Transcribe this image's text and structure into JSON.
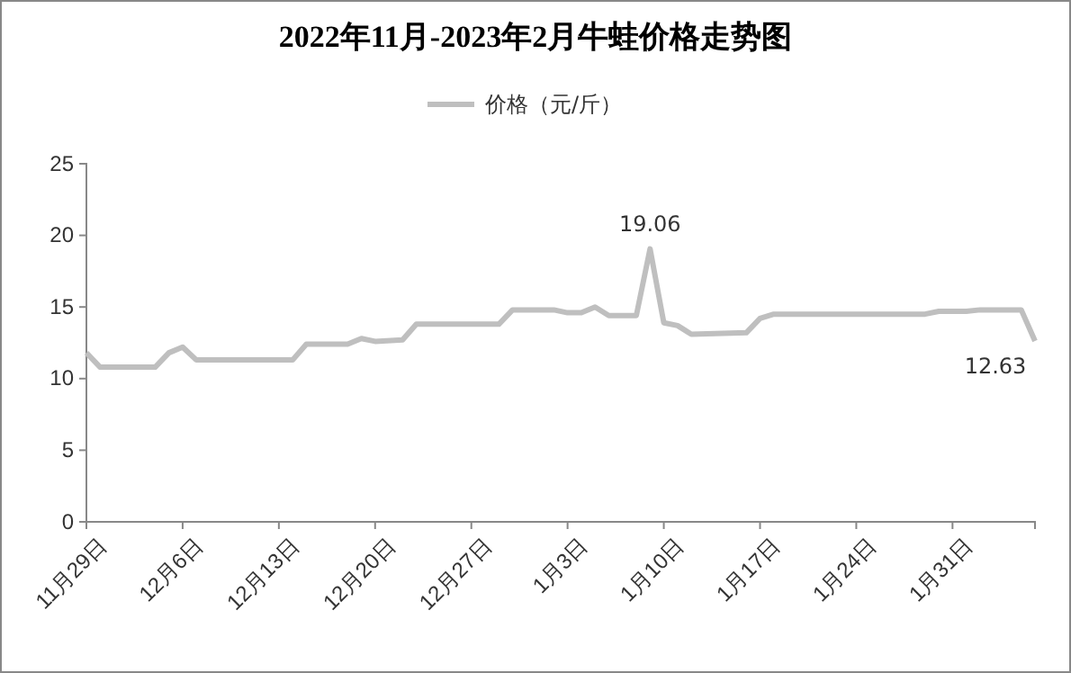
{
  "chart_data": {
    "type": "line",
    "title": "2022年11月-2023年2月牛蛙价格走势图",
    "x": [
      "2022-11-29",
      "2022-11-30",
      "2022-12-04",
      "2022-12-05",
      "2022-12-06",
      "2022-12-07",
      "2022-12-14",
      "2022-12-15",
      "2022-12-18",
      "2022-12-19",
      "2022-12-20",
      "2022-12-22",
      "2022-12-23",
      "2022-12-29",
      "2022-12-30",
      "2023-01-02",
      "2023-01-03",
      "2023-01-04",
      "2023-01-05",
      "2023-01-06",
      "2023-01-08",
      "2023-01-09",
      "2023-01-10",
      "2023-01-11",
      "2023-01-12",
      "2023-01-16",
      "2023-01-17",
      "2023-01-18",
      "2023-01-29",
      "2023-01-30",
      "2023-02-01",
      "2023-02-02",
      "2023-02-05",
      "2023-02-06"
    ],
    "series": [
      {
        "name": "价格（元/斤）",
        "color": "#bfbfbf",
        "values": [
          11.8,
          10.8,
          10.8,
          11.8,
          12.2,
          11.3,
          11.3,
          12.4,
          12.4,
          12.8,
          12.6,
          12.7,
          13.8,
          13.8,
          14.8,
          14.8,
          14.6,
          14.6,
          15,
          14.4,
          14.4,
          19.06,
          13.9,
          13.7,
          13.1,
          13.2,
          14.2,
          14.5,
          14.5,
          14.7,
          14.7,
          14.8,
          14.8,
          12.63
        ],
        "value_labels": [
          null,
          null,
          null,
          null,
          null,
          null,
          null,
          null,
          null,
          null,
          null,
          null,
          null,
          null,
          null,
          null,
          null,
          null,
          null,
          null,
          null,
          "19.06",
          null,
          null,
          null,
          null,
          null,
          null,
          null,
          null,
          null,
          null,
          null,
          "12.63"
        ]
      }
    ],
    "xlim": [
      "2022-11-29",
      "2023-02-06"
    ],
    "xticks": [
      {
        "value": "2022-11-29",
        "label": "11月29日"
      },
      {
        "value": "2022-12-06",
        "label": "12月6日"
      },
      {
        "value": "2022-12-13",
        "label": "12月13日"
      },
      {
        "value": "2022-12-20",
        "label": "12月20日"
      },
      {
        "value": "2022-12-27",
        "label": "12月27日"
      },
      {
        "value": "2023-01-03",
        "label": "1月3日"
      },
      {
        "value": "2023-01-10",
        "label": "1月10日"
      },
      {
        "value": "2023-01-17",
        "label": "1月17日"
      },
      {
        "value": "2023-01-24",
        "label": "1月24日"
      },
      {
        "value": "2023-01-31",
        "label": "1月31日"
      }
    ],
    "ylim": [
      0,
      25
    ],
    "yticks": [
      0,
      5,
      10,
      15,
      20,
      25
    ],
    "grid": false,
    "legend": "top",
    "marker": "none",
    "line_style": "solid"
  }
}
